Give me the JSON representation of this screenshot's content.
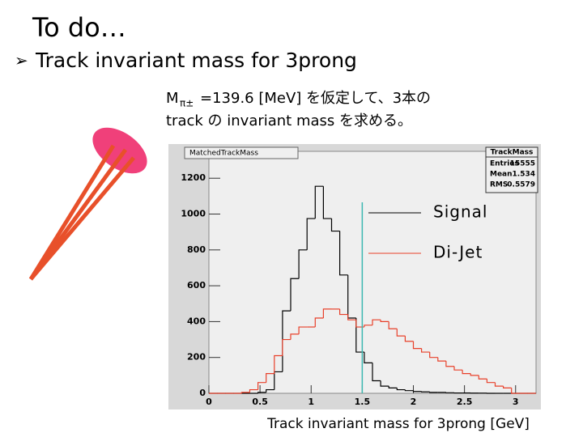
{
  "slide": {
    "heading": "To do…",
    "bullet": "Track invariant mass for 3prong",
    "note_line1_m": "M",
    "note_line1_sub": "π±",
    "note_line1_rest": "=139.6 [MeV] を仮定して、3本の",
    "note_line2": "track の invariant mass を求める。"
  },
  "chart_data": {
    "type": "histogram",
    "title": "MatchedTrackMass",
    "x_label": "Track invariant mass for 3prong [GeV]",
    "bins": [
      0,
      0.08,
      0.16,
      0.24,
      0.32,
      0.4,
      0.48,
      0.56,
      0.64,
      0.72,
      0.8,
      0.88,
      0.96,
      1.04,
      1.12,
      1.2,
      1.28,
      1.36,
      1.44,
      1.52,
      1.6,
      1.68,
      1.76,
      1.84,
      1.92,
      2,
      2.08,
      2.16,
      2.24,
      2.32,
      2.4,
      2.48,
      2.56,
      2.64,
      2.72,
      2.8,
      2.88,
      2.96,
      3.04,
      3.12,
      3.2
    ],
    "series": [
      {
        "name": "Signal",
        "color": "#000000",
        "values": [
          0,
          0,
          0,
          0,
          0,
          0,
          5,
          20,
          120,
          460,
          640,
          800,
          975,
          1155,
          975,
          905,
          660,
          420,
          230,
          170,
          70,
          40,
          30,
          20,
          15,
          10,
          8,
          5,
          5,
          3,
          2,
          2,
          1,
          1,
          0,
          0,
          0,
          0,
          0,
          0
        ]
      },
      {
        "name": "Di-Jet",
        "color": "#e8402a",
        "values": [
          0,
          0,
          0,
          0,
          5,
          20,
          60,
          110,
          210,
          300,
          330,
          370,
          370,
          420,
          470,
          470,
          440,
          410,
          370,
          380,
          410,
          400,
          360,
          320,
          290,
          250,
          230,
          200,
          180,
          150,
          130,
          110,
          100,
          80,
          60,
          40,
          30,
          0,
          0,
          0
        ]
      }
    ],
    "vline": 1.5,
    "vline_color": "#3cb8b0",
    "xlim": [
      0,
      3.2
    ],
    "xticks": [
      0,
      0.5,
      1,
      1.5,
      2,
      2.5,
      3
    ],
    "ylim": [
      0,
      1350
    ],
    "yticks": [
      0,
      200,
      400,
      600,
      800,
      1000,
      1200
    ],
    "stats": {
      "title": "TrackMass",
      "rows": [
        {
          "label": "Entries",
          "value": 15555
        },
        {
          "label": "Mean",
          "value": 1.534
        },
        {
          "label": "RMS",
          "value": 0.5579
        }
      ]
    }
  }
}
